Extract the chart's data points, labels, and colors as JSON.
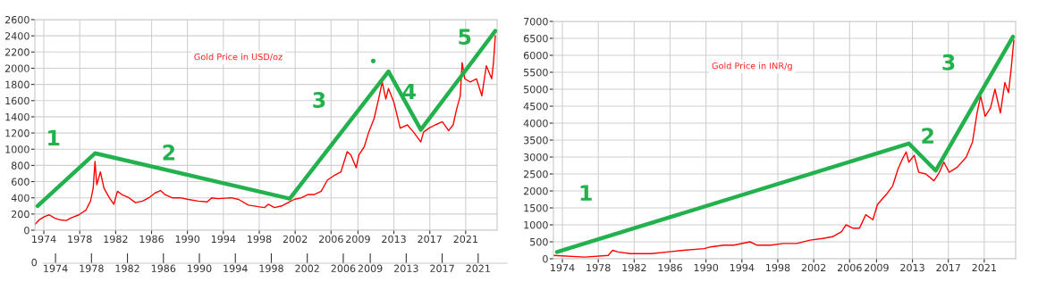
{
  "chart_data": [
    {
      "type": "line",
      "title": "Gold Price in USD/oz",
      "grid": true,
      "xlim": [
        1973.0,
        2024.5
      ],
      "ylim": [
        0,
        2600
      ],
      "xticks": [
        1974,
        1978,
        1982,
        1986,
        1990,
        1994,
        1998,
        2002,
        2006,
        2009,
        2013,
        2017,
        2021
      ],
      "yticks": [
        0,
        200,
        400,
        600,
        800,
        1000,
        1200,
        1400,
        1600,
        1800,
        2000,
        2200,
        2400,
        2600
      ],
      "series": [
        {
          "color": "#ff0000",
          "x": [
            1973.0,
            1973.5,
            1974.1,
            1974.6,
            1975.2,
            1975.7,
            1976.5,
            1977.0,
            1977.9,
            1978.7,
            1979.2,
            1979.5,
            1979.7,
            1979.9,
            1980.2,
            1980.3,
            1980.7,
            1981.3,
            1981.8,
            1982.2,
            1982.7,
            1983.5,
            1984.2,
            1985.0,
            1985.7,
            1986.4,
            1987.0,
            1987.5,
            1988.3,
            1989.2,
            1990.1,
            1991.2,
            1992.2,
            1992.7,
            1993.4,
            1994.9,
            1995.7,
            1996.8,
            1997.9,
            1998.6,
            1999.0,
            1999.7,
            2000.5,
            2001.2,
            2001.9,
            2002.7,
            2003.4,
            2004.1,
            2004.9,
            2005.6,
            2006.4,
            2007.1,
            2007.8,
            2008.2,
            2008.8,
            2009.1,
            2009.7,
            2010.2,
            2010.8,
            2011.3,
            2011.7,
            2012.1,
            2012.4,
            2013.0,
            2013.4,
            2013.7,
            2014.5,
            2015.2,
            2016.0,
            2016.3,
            2016.9,
            2017.6,
            2018.4,
            2019.1,
            2019.6,
            2020.0,
            2020.4,
            2020.6,
            2020.9,
            2021.5,
            2022.2,
            2022.8,
            2023.3,
            2023.9,
            2024.1,
            2024.3
          ],
          "values": [
            70,
            130,
            170,
            190,
            150,
            130,
            120,
            150,
            190,
            250,
            360,
            520,
            850,
            560,
            680,
            720,
            520,
            400,
            320,
            480,
            440,
            400,
            340,
            360,
            400,
            460,
            490,
            440,
            400,
            400,
            380,
            360,
            350,
            400,
            390,
            400,
            380,
            310,
            290,
            280,
            320,
            280,
            300,
            340,
            380,
            400,
            440,
            440,
            480,
            620,
            680,
            720,
            970,
            930,
            770,
            930,
            1030,
            1210,
            1380,
            1620,
            1830,
            1620,
            1750,
            1580,
            1400,
            1260,
            1300,
            1210,
            1090,
            1210,
            1260,
            1300,
            1340,
            1230,
            1300,
            1500,
            1660,
            2070,
            1870,
            1830,
            1870,
            1660,
            2030,
            1870,
            2070,
            2400
          ]
        },
        {
          "color": "#22b14c",
          "x": [
            1973.3,
            1979.7,
            2001.4,
            2012.4,
            2016.0,
            2024.3
          ],
          "values": [
            300,
            950,
            390,
            1960,
            1240,
            2460
          ]
        },
        {
          "type": "scatter",
          "color": "#22b14c",
          "x": [
            2010.7
          ],
          "values": [
            2090
          ]
        }
      ],
      "x2lim": [
        1972.6,
        2024.2
      ],
      "x2ticks": [
        1974,
        1978,
        1982,
        1986,
        1990,
        1994,
        1998,
        2002,
        2006,
        2009,
        2013,
        2017,
        2021
      ],
      "annotations": [
        "1",
        "2",
        "3",
        "4",
        "5",
        "0"
      ]
    },
    {
      "type": "line",
      "title": "Gold Price in INR/g",
      "grid": true,
      "xlim": [
        1973.0,
        2024.5
      ],
      "ylim": [
        0,
        7000
      ],
      "xticks": [
        1974,
        1978,
        1982,
        1986,
        1990,
        1994,
        1998,
        2002,
        2006,
        2009,
        2013,
        2017,
        2021
      ],
      "yticks": [
        0,
        500,
        1000,
        1500,
        2000,
        2500,
        3000,
        3500,
        4000,
        4500,
        5000,
        5500,
        6000,
        6500,
        7000
      ],
      "series": [
        {
          "color": "#ff0000",
          "x": [
            1973.0,
            1976.5,
            1979.1,
            1979.6,
            1980.2,
            1981.6,
            1983.9,
            1985.7,
            1987.5,
            1989.8,
            1990.5,
            1992.0,
            1993.1,
            1994.9,
            1995.7,
            1997.2,
            1998.6,
            2000.1,
            2001.6,
            2003.0,
            2004.1,
            2005.1,
            2005.6,
            2006.4,
            2007.1,
            2007.8,
            2008.6,
            2009.1,
            2010.1,
            2010.8,
            2011.4,
            2011.9,
            2012.3,
            2012.6,
            2013.2,
            2013.7,
            2014.5,
            2015.4,
            2016.0,
            2016.5,
            2017.1,
            2018.0,
            2019.0,
            2019.7,
            2020.2,
            2020.6,
            2021.1,
            2021.7,
            2022.2,
            2022.8,
            2023.3,
            2023.7,
            2024.0,
            2024.3
          ],
          "values": [
            100,
            50,
            100,
            250,
            200,
            150,
            150,
            200,
            250,
            300,
            350,
            400,
            400,
            500,
            400,
            400,
            450,
            450,
            550,
            600,
            650,
            800,
            1000,
            900,
            900,
            1300,
            1150,
            1600,
            1900,
            2150,
            2650,
            2950,
            3150,
            2850,
            3050,
            2550,
            2500,
            2300,
            2550,
            2850,
            2550,
            2700,
            3000,
            3450,
            4300,
            4800,
            4200,
            4450,
            5000,
            4300,
            5200,
            4900,
            5600,
            6450
          ]
        },
        {
          "color": "#22b14c",
          "x": [
            1973.4,
            2012.6,
            2015.6,
            2024.2
          ],
          "values": [
            200,
            3400,
            2600,
            6550
          ]
        }
      ],
      "annotations": [
        "1",
        "2",
        "3"
      ]
    }
  ]
}
